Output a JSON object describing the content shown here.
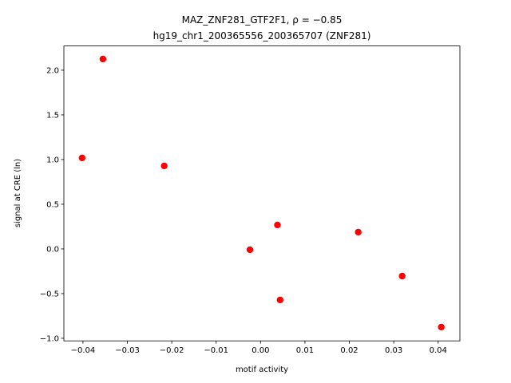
{
  "chart_data": {
    "type": "scatter",
    "title": "MAZ_ZNF281_GTF2F1, ρ = −0.85",
    "subtitle": "hg19_chr1_200365556_200365707 (ZNF281)",
    "x_label": "motif activity",
    "y_label": "signal at CRE (ln)",
    "color": "#ff0000",
    "x": [
      -0.0355,
      -0.0402,
      -0.0217,
      -0.0024,
      0.0038,
      0.0044,
      0.022,
      0.0319,
      0.0407
    ],
    "values": [
      2.125,
      1.018,
      0.929,
      -0.009,
      0.268,
      -0.571,
      0.188,
      -0.304,
      -0.875
    ],
    "xlim": [
      -0.0443,
      0.0449
    ],
    "ylim": [
      -1.029,
      2.271
    ],
    "xticks": [
      {
        "value": -0.04,
        "label": "−0.04"
      },
      {
        "value": -0.03,
        "label": "−0.03"
      },
      {
        "value": -0.02,
        "label": "−0.02"
      },
      {
        "value": -0.01,
        "label": "−0.01"
      },
      {
        "value": 0,
        "label": "0.00"
      },
      0.01,
      0.02,
      0.03,
      0.04
    ],
    "yticks": [
      {
        "value": -1,
        "label": "−1.0"
      },
      {
        "value": -0.5,
        "label": "−0.5"
      },
      {
        "value": 0,
        "label": "0.0"
      },
      0.5,
      {
        "value": 1,
        "label": "1.0"
      },
      1.5,
      {
        "value": 2,
        "label": "2.0"
      }
    ]
  }
}
